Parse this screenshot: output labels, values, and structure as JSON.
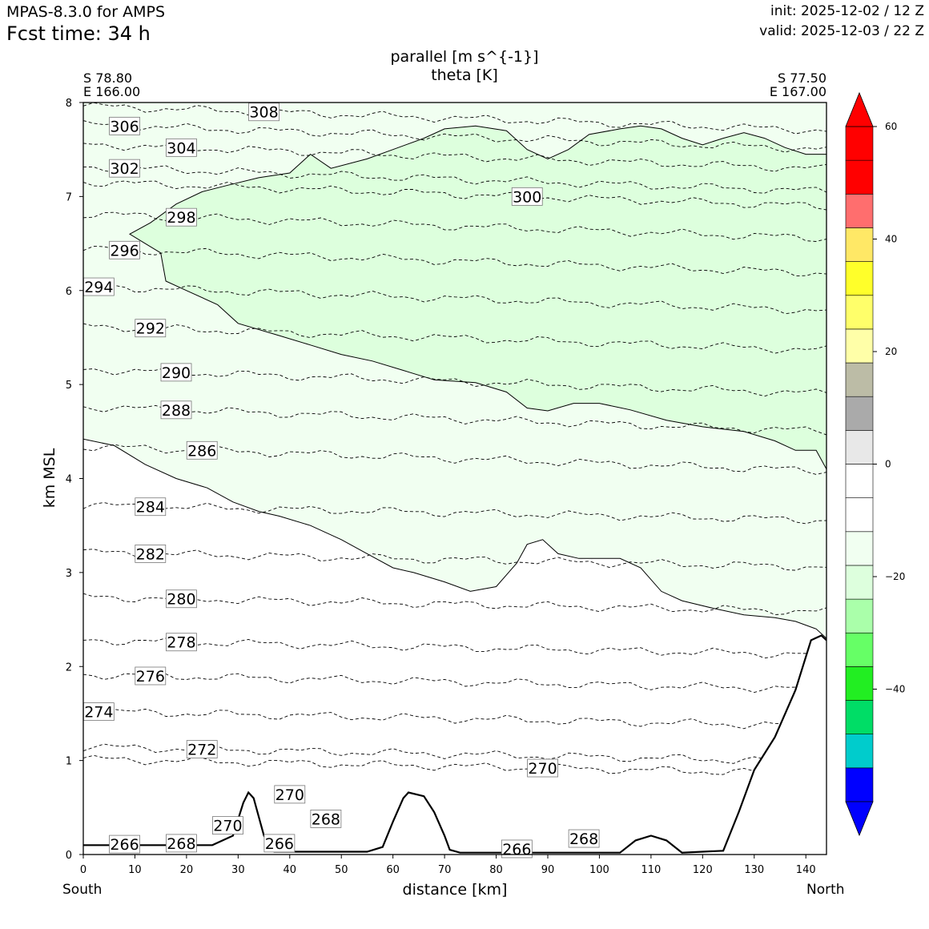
{
  "header": {
    "model": "MPAS-8.3.0 for AMPS",
    "fcst_time": "Fcst time:   34 h",
    "init": "init: 2025-12-02 / 12 Z",
    "valid": "valid: 2025-12-03 / 22 Z"
  },
  "chart_data": {
    "type": "contour",
    "title": "parallel [m s^{-1}]",
    "subtitle": "theta [K]",
    "xlabel": "distance [km]",
    "ylabel": "km MSL",
    "xlim": [
      0,
      144
    ],
    "ylim": [
      0,
      8
    ],
    "x_ticks": [
      0,
      10,
      20,
      30,
      40,
      50,
      60,
      70,
      80,
      90,
      100,
      110,
      120,
      130,
      140
    ],
    "y_ticks": [
      0,
      1,
      2,
      3,
      4,
      5,
      6,
      7,
      8
    ],
    "left_end": {
      "lat": "S 78.80",
      "lon": "E 166.00",
      "label": "South"
    },
    "right_end": {
      "lat": "S 77.50",
      "lon": "E 167.00",
      "label": "North"
    },
    "terrain": [
      [
        0,
        0.1
      ],
      [
        25,
        0.1
      ],
      [
        29,
        0.2
      ],
      [
        31,
        0.55
      ],
      [
        32,
        0.66
      ],
      [
        33,
        0.6
      ],
      [
        35,
        0.2
      ],
      [
        37,
        0.03
      ],
      [
        55,
        0.03
      ],
      [
        58,
        0.08
      ],
      [
        60,
        0.35
      ],
      [
        62,
        0.6
      ],
      [
        63,
        0.66
      ],
      [
        66,
        0.62
      ],
      [
        68,
        0.45
      ],
      [
        70,
        0.2
      ],
      [
        71,
        0.05
      ],
      [
        73,
        0.02
      ],
      [
        104,
        0.02
      ],
      [
        107,
        0.15
      ],
      [
        110,
        0.2
      ],
      [
        113,
        0.15
      ],
      [
        116,
        0.02
      ],
      [
        124,
        0.04
      ],
      [
        127,
        0.45
      ],
      [
        130,
        0.9
      ],
      [
        134,
        1.25
      ],
      [
        138,
        1.75
      ],
      [
        141,
        2.28
      ],
      [
        143,
        2.33
      ],
      [
        144,
        2.28
      ]
    ],
    "wind_contours": [
      {
        "level": -10,
        "points": [
          [
            0,
            4.42
          ],
          [
            6,
            4.35
          ],
          [
            12,
            4.15
          ],
          [
            18,
            4
          ],
          [
            24,
            3.9
          ],
          [
            29,
            3.75
          ],
          [
            34,
            3.65
          ],
          [
            38,
            3.6
          ],
          [
            44,
            3.5
          ],
          [
            50,
            3.35
          ],
          [
            55,
            3.2
          ],
          [
            60,
            3.05
          ],
          [
            64,
            3
          ],
          [
            70,
            2.9
          ],
          [
            75,
            2.8
          ],
          [
            80,
            2.85
          ],
          [
            84,
            3.1
          ],
          [
            86,
            3.3
          ],
          [
            89,
            3.35
          ],
          [
            92,
            3.2
          ],
          [
            96,
            3.15
          ],
          [
            100,
            3.15
          ],
          [
            104,
            3.15
          ],
          [
            108,
            3.05
          ],
          [
            112,
            2.8
          ],
          [
            116,
            2.7
          ],
          [
            122,
            2.62
          ],
          [
            128,
            2.55
          ],
          [
            134,
            2.52
          ],
          [
            138,
            2.48
          ],
          [
            142,
            2.4
          ],
          [
            144,
            2.3
          ]
        ]
      },
      {
        "level": -15,
        "points": [
          [
            144,
            4.1
          ],
          [
            142,
            4.3
          ],
          [
            138,
            4.3
          ],
          [
            134,
            4.4
          ],
          [
            128,
            4.5
          ],
          [
            120,
            4.55
          ],
          [
            113,
            4.62
          ],
          [
            106,
            4.73
          ],
          [
            100,
            4.8
          ],
          [
            95,
            4.8
          ],
          [
            90,
            4.72
          ],
          [
            86,
            4.75
          ],
          [
            82,
            4.92
          ],
          [
            76,
            5.02
          ],
          [
            68,
            5.05
          ],
          [
            62,
            5.15
          ],
          [
            56,
            5.25
          ],
          [
            50,
            5.32
          ],
          [
            44,
            5.42
          ],
          [
            38,
            5.52
          ],
          [
            30,
            5.65
          ],
          [
            26,
            5.85
          ],
          [
            20,
            6
          ],
          [
            16,
            6.1
          ],
          [
            15,
            6.4
          ],
          [
            12,
            6.5
          ],
          [
            9,
            6.6
          ],
          [
            13,
            6.72
          ],
          [
            18,
            6.92
          ],
          [
            23,
            7.05
          ],
          [
            28,
            7.12
          ],
          [
            34,
            7.2
          ],
          [
            40,
            7.25
          ],
          [
            44,
            7.45
          ],
          [
            48,
            7.3
          ],
          [
            55,
            7.4
          ],
          [
            60,
            7.5
          ],
          [
            66,
            7.62
          ],
          [
            70,
            7.72
          ],
          [
            76,
            7.75
          ],
          [
            82,
            7.7
          ],
          [
            86,
            7.5
          ],
          [
            90,
            7.4
          ],
          [
            94,
            7.5
          ],
          [
            98,
            7.66
          ],
          [
            104,
            7.72
          ],
          [
            108,
            7.75
          ],
          [
            112,
            7.72
          ],
          [
            116,
            7.62
          ],
          [
            120,
            7.55
          ],
          [
            124,
            7.62
          ],
          [
            128,
            7.68
          ],
          [
            132,
            7.62
          ],
          [
            136,
            7.52
          ],
          [
            140,
            7.45
          ],
          [
            144,
            7.45
          ]
        ]
      }
    ],
    "theta_labels": [
      {
        "value": "308",
        "x": 35,
        "y": 7.9
      },
      {
        "value": "306",
        "x": 8,
        "y": 7.75
      },
      {
        "value": "304",
        "x": 19,
        "y": 7.52
      },
      {
        "value": "302",
        "x": 8,
        "y": 7.3
      },
      {
        "value": "300",
        "x": 86,
        "y": 7.0
      },
      {
        "value": "298",
        "x": 19,
        "y": 6.78
      },
      {
        "value": "296",
        "x": 8,
        "y": 6.43
      },
      {
        "value": "294",
        "x": 3,
        "y": 6.04
      },
      {
        "value": "292",
        "x": 13,
        "y": 5.6
      },
      {
        "value": "290",
        "x": 18,
        "y": 5.13
      },
      {
        "value": "288",
        "x": 18,
        "y": 4.73
      },
      {
        "value": "286",
        "x": 23,
        "y": 4.3
      },
      {
        "value": "284",
        "x": 13,
        "y": 3.7
      },
      {
        "value": "282",
        "x": 13,
        "y": 3.2
      },
      {
        "value": "280",
        "x": 19,
        "y": 2.72
      },
      {
        "value": "278",
        "x": 19,
        "y": 2.26
      },
      {
        "value": "276",
        "x": 13,
        "y": 1.9
      },
      {
        "value": "274",
        "x": 3,
        "y": 1.52
      },
      {
        "value": "272",
        "x": 23,
        "y": 1.12
      },
      {
        "value": "270",
        "x": 89,
        "y": 0.92
      },
      {
        "value": "270",
        "x": 40,
        "y": 0.64
      },
      {
        "value": "268",
        "x": 47,
        "y": 0.38
      },
      {
        "value": "270",
        "x": 28,
        "y": 0.31
      },
      {
        "value": "268",
        "x": 97,
        "y": 0.17
      },
      {
        "value": "268",
        "x": 19,
        "y": 0.12
      },
      {
        "value": "266",
        "x": 8,
        "y": 0.11
      },
      {
        "value": "266",
        "x": 38,
        "y": 0.12
      },
      {
        "value": "266",
        "x": 84,
        "y": 0.06
      }
    ],
    "colorbar": {
      "ticks": [
        "60",
        "40",
        "20",
        "0",
        "−20",
        "−40"
      ],
      "tick_values": [
        60,
        40,
        20,
        0,
        -20,
        -40
      ],
      "min": -60,
      "max": 60,
      "step": 6,
      "colors": [
        "#0000ff",
        "#00cccc",
        "#00dd66",
        "#22ee22",
        "#66ff66",
        "#aaffaa",
        "#ddffdd",
        "#f1fff1",
        "#ffffff",
        "#ffffff",
        "#e8e8e8",
        "#aaaaaa",
        "#bcbca6",
        "#ffffa8",
        "#ffff6a",
        "#ffff2a",
        "#ffe866",
        "#ff6e6e",
        "#ff0000",
        "#ff0000"
      ],
      "extend_low": "#0000ff",
      "extend_high": "#ff0000"
    }
  }
}
